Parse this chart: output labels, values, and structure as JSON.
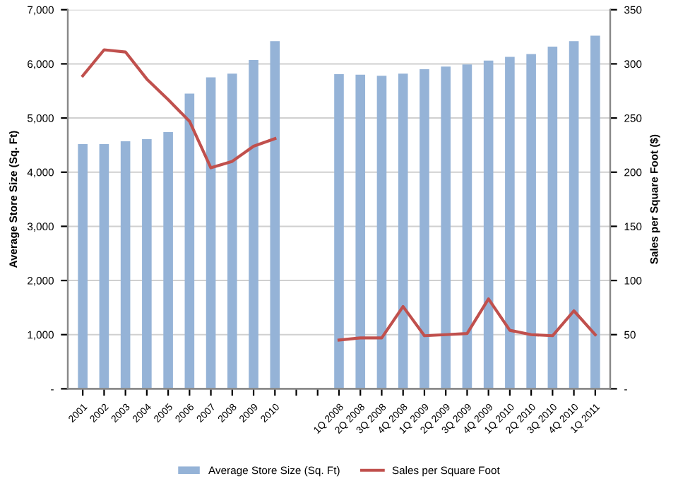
{
  "chart_data": {
    "type": "bar",
    "categories": [
      "2001",
      "2002",
      "2003",
      "2004",
      "2005",
      "2006",
      "2007",
      "2008",
      "2009",
      "2010",
      null,
      null,
      "1Q 2008",
      "2Q 2008",
      "3Q 2008",
      "4Q 2008",
      "1Q 2009",
      "2Q 2009",
      "3Q 2009",
      "4Q 2009",
      "1Q 2010",
      "2Q 2010",
      "3Q 2010",
      "4Q 2010",
      "1Q 2011"
    ],
    "series": [
      {
        "name": "Average Store Size (Sq. Ft)",
        "color": "#95b3d7",
        "values": [
          4520,
          4520,
          4570,
          4610,
          4740,
          5450,
          5750,
          5820,
          6070,
          6420,
          null,
          null,
          5810,
          5800,
          5780,
          5820,
          5900,
          5950,
          5990,
          6060,
          6130,
          6180,
          6320,
          6420,
          6520
        ]
      },
      {
        "name": "Sales per Square Foot",
        "type": "line",
        "axis": "y2",
        "color": "#c0504d",
        "values": [
          289,
          313,
          311,
          286,
          267,
          247,
          204,
          210,
          224,
          231,
          null,
          null,
          45,
          47,
          47,
          76,
          49,
          50,
          51,
          83,
          54,
          50,
          49,
          72,
          50
        ]
      }
    ],
    "ylabel": "Average Store Size (Sq. Ft)",
    "y2label": "Sales per Square Foot ($)",
    "ylim": [
      0,
      7000
    ],
    "yticks": [
      {
        "value": 0,
        "label": "-"
      },
      {
        "value": 1000,
        "label": "1,000"
      },
      {
        "value": 2000,
        "label": "2,000"
      },
      {
        "value": 3000,
        "label": "3,000"
      },
      {
        "value": 4000,
        "label": "4,000"
      },
      {
        "value": 5000,
        "label": "5,000"
      },
      {
        "value": 6000,
        "label": "6,000"
      },
      {
        "value": 7000,
        "label": "7,000"
      }
    ],
    "y2lim": [
      0,
      350
    ],
    "y2ticks": [
      {
        "value": 0,
        "label": "-"
      },
      50,
      100,
      150,
      200,
      250,
      300,
      350
    ],
    "grid": "y",
    "legend": "bottom",
    "marker": "none",
    "line_style": "solid"
  }
}
